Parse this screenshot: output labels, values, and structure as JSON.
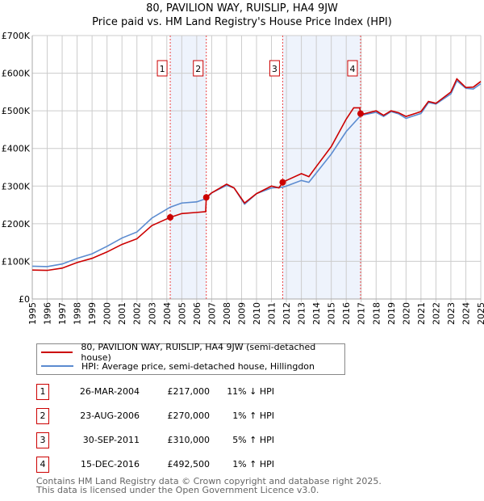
{
  "chart_data": {
    "type": "line",
    "title": "80, PAVILION WAY, RUISLIP, HA4 9JW",
    "subtitle": "Price paid vs. HM Land Registry's House Price Index (HPI)",
    "xlim": [
      1995,
      2025
    ],
    "ylim": [
      0,
      700000
    ],
    "yticks": [
      {
        "v": 0,
        "label": "£0"
      },
      {
        "v": 100000,
        "label": "£100K"
      },
      {
        "v": 200000,
        "label": "£200K"
      },
      {
        "v": 300000,
        "label": "£300K"
      },
      {
        "v": 400000,
        "label": "£400K"
      },
      {
        "v": 500000,
        "label": "£500K"
      },
      {
        "v": 600000,
        "label": "£600K"
      },
      {
        "v": 700000,
        "label": "£700K"
      }
    ],
    "xticks": [
      "1995",
      "1996",
      "1997",
      "1998",
      "1999",
      "2000",
      "2001",
      "2002",
      "2003",
      "2004",
      "2005",
      "2006",
      "2007",
      "2008",
      "2009",
      "2010",
      "2011",
      "2012",
      "2013",
      "2014",
      "2015",
      "2016",
      "2017",
      "2018",
      "2019",
      "2020",
      "2021",
      "2022",
      "2023",
      "2024",
      "2025"
    ],
    "grid": true,
    "shaded_ranges": [
      [
        2004.23,
        2006.64
      ],
      [
        2011.75,
        2016.96
      ]
    ],
    "series": [
      {
        "name": "80, PAVILION WAY, RUISLIP, HA4 9JW (semi-detached house)",
        "color": "#cc0000",
        "x": [
          1995,
          1996,
          1997,
          1998,
          1999,
          2000,
          2001,
          2002,
          2003,
          2004.23,
          2005,
          2006,
          2006.6,
          2006.64,
          2007,
          2008,
          2008.5,
          2009.2,
          2010,
          2011,
          2011.5,
          2011.75,
          2012,
          2013,
          2013.5,
          2014,
          2015,
          2016,
          2016.5,
          2016.9,
          2016.96,
          2017,
          2018,
          2018.5,
          2019,
          2019.5,
          2020,
          2021,
          2021.5,
          2022,
          2023,
          2023.4,
          2024,
          2024.5,
          2025
        ],
        "y": [
          77000,
          76000,
          82000,
          97000,
          108000,
          125000,
          145000,
          160000,
          195000,
          217000,
          227000,
          230000,
          232000,
          270000,
          282000,
          305000,
          295000,
          255000,
          280000,
          300000,
          295000,
          310000,
          315000,
          333000,
          325000,
          352000,
          405000,
          478000,
          508000,
          508000,
          492500,
          490000,
          500000,
          488000,
          500000,
          495000,
          485000,
          498000,
          525000,
          520000,
          550000,
          585000,
          562000,
          563000,
          578000
        ]
      },
      {
        "name": "HPI: Average price, semi-detached house, Hillingdon",
        "color": "#5b8bd0",
        "x": [
          1995,
          1996,
          1997,
          1998,
          1999,
          2000,
          2001,
          2002,
          2003,
          2004.23,
          2005,
          2006,
          2006.64,
          2007,
          2008,
          2008.5,
          2009.2,
          2010,
          2011,
          2011.75,
          2012,
          2013,
          2013.5,
          2014,
          2015,
          2016,
          2016.96,
          2017,
          2018,
          2018.5,
          2019,
          2019.5,
          2020,
          2021,
          2021.5,
          2022,
          2023,
          2023.4,
          2024,
          2024.5,
          2025
        ],
        "y": [
          87000,
          86000,
          93000,
          108000,
          120000,
          140000,
          162000,
          178000,
          215000,
          244000,
          255000,
          258000,
          267000,
          282000,
          302000,
          295000,
          252000,
          280000,
          295000,
          297000,
          300000,
          315000,
          310000,
          335000,
          385000,
          445000,
          487000,
          488000,
          496000,
          485000,
          498000,
          492000,
          480000,
          493000,
          522000,
          518000,
          545000,
          580000,
          560000,
          558000,
          572000
        ]
      }
    ],
    "sales": [
      {
        "n": "1",
        "date": "26-MAR-2004",
        "x": 2004.23,
        "price": 217000,
        "price_label": "£217,000",
        "hpi": "11% ↓ HPI"
      },
      {
        "n": "2",
        "date": "23-AUG-2006",
        "x": 2006.64,
        "price": 270000,
        "price_label": "£270,000",
        "hpi": "1% ↑ HPI"
      },
      {
        "n": "3",
        "date": "30-SEP-2011",
        "x": 2011.75,
        "price": 310000,
        "price_label": "£310,000",
        "hpi": "5% ↑ HPI"
      },
      {
        "n": "4",
        "date": "15-DEC-2016",
        "x": 2016.96,
        "price": 492500,
        "price_label": "£492,500",
        "hpi": "1% ↑ HPI"
      }
    ],
    "legend": "below"
  },
  "footer": {
    "line1": "Contains HM Land Registry data © Crown copyright and database right 2025.",
    "line2": "This data is licensed under the Open Government Licence v3.0."
  }
}
